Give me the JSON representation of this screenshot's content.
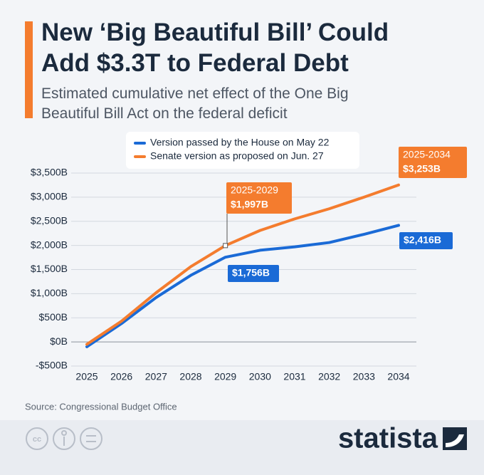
{
  "chart_data": {
    "type": "line",
    "title": "New ‘Big Beautiful Bill’ Could Add $3.3T to Federal Debt",
    "subtitle": "Estimated cumulative net effect of the One Big Beautiful Bill Act on the federal deficit",
    "categories": [
      "2025",
      "2026",
      "2027",
      "2028",
      "2029",
      "2030",
      "2031",
      "2032",
      "2033",
      "2034"
    ],
    "series": [
      {
        "name": "Version passed by the House on May 22",
        "color": "#1a6ad6",
        "values": [
          -100,
          380,
          920,
          1380,
          1756,
          1900,
          1970,
          2060,
          2230,
          2416
        ],
        "value_labels": [
          null,
          null,
          null,
          null,
          "$1,756B",
          null,
          null,
          null,
          null,
          "$2,416B"
        ]
      },
      {
        "name": "Senate version as proposed on Jun. 27",
        "color": "#f47c2e",
        "values": [
          -50,
          430,
          1020,
          1560,
          1997,
          2310,
          2550,
          2760,
          3000,
          3253
        ],
        "value_labels": [
          null,
          null,
          null,
          null,
          "$1,997B",
          null,
          null,
          null,
          null,
          "$3,253B"
        ],
        "period_labels": [
          null,
          null,
          null,
          null,
          "2025-2029",
          null,
          null,
          null,
          null,
          "2025-2034"
        ]
      }
    ],
    "ylim": [
      -500,
      3500
    ],
    "yticks": [
      {
        "value": -500,
        "label": "-$500B"
      },
      {
        "value": 0,
        "label": "$0B"
      },
      {
        "value": 500,
        "label": "$500B"
      },
      {
        "value": 1000,
        "label": "$1,000B"
      },
      {
        "value": 1500,
        "label": "$1,500B"
      },
      {
        "value": 2000,
        "label": "$2,000B"
      },
      {
        "value": 2500,
        "label": "$2,500B"
      },
      {
        "value": 3000,
        "label": "$3,000B"
      },
      {
        "value": 3500,
        "label": "$3,500B"
      }
    ],
    "grid": true,
    "legend": "top",
    "source": "Source: Congressional Budget Office",
    "brand": "statista"
  }
}
